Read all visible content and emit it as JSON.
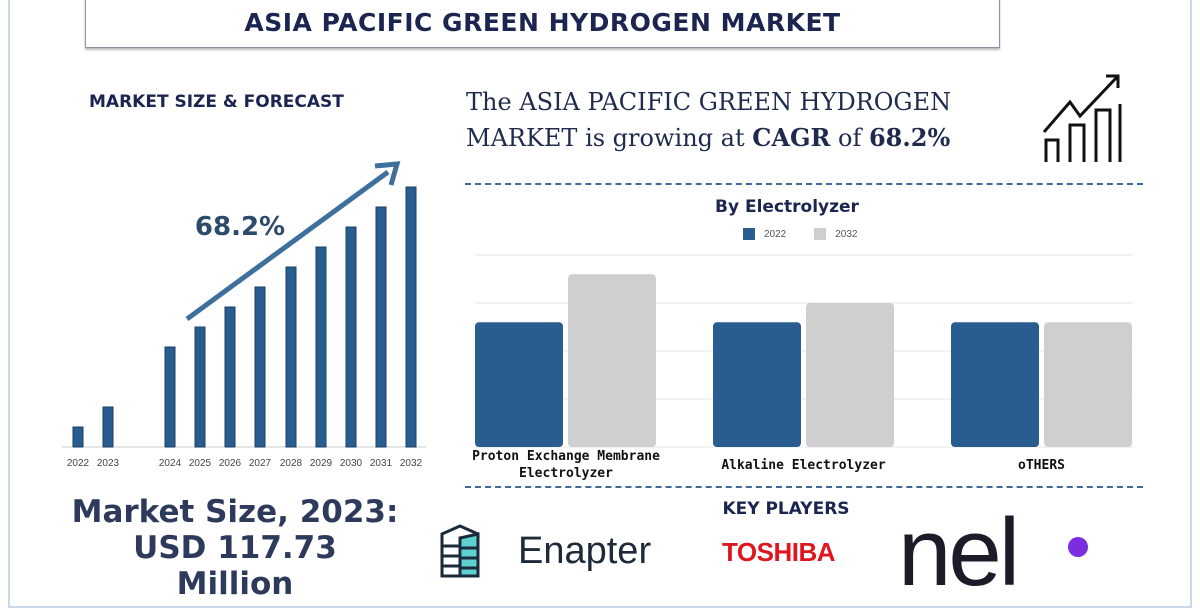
{
  "title": "ASIA PACIFIC GREEN HYDROGEN MARKET",
  "forecast_heading": "MARKET SIZE & FORECAST",
  "headline": {
    "part1": "The ASIA PACIFIC GREEN HYDROGEN MARKET is growing at ",
    "cagr_label": "CAGR",
    "of": " of ",
    "cagr_value": "68.2%"
  },
  "icon": "growth-chart-icon",
  "market_size": {
    "line1": "Market Size, 2023:",
    "line2": "USD 117.73",
    "line3": "Million"
  },
  "key_players": {
    "heading": "KEY PLAYERS",
    "players": [
      "Enapter",
      "TOSHIBA",
      "nel"
    ]
  },
  "colors": {
    "primary": "#2a5d8f",
    "secondary": "#cfcfcf",
    "toshiba": "#e0161e",
    "nel_dot": "#7b2ee0",
    "text": "#1f2a4d"
  },
  "chart_data": [
    {
      "type": "bar",
      "title": "",
      "annotation": "68.2%",
      "categories": [
        "2022",
        "2023",
        "2024",
        "2025",
        "2026",
        "2027",
        "2028",
        "2029",
        "2030",
        "2031",
        "2032"
      ],
      "values": [
        1,
        2,
        5,
        6,
        7,
        8,
        9,
        10,
        11,
        12,
        13
      ],
      "grid": false,
      "trend_arrow": true
    },
    {
      "type": "bar",
      "title": "By Electrolyzer",
      "categories": [
        "Proton Exchange Membrane Electrolyzer",
        "Alkaline Electrolyzer",
        "oTHERS"
      ],
      "series": [
        {
          "name": "2022",
          "values": [
            2.6,
            2.6,
            2.6
          ]
        },
        {
          "name": "2032",
          "values": [
            3.6,
            3.0,
            2.6
          ]
        }
      ],
      "ylim": [
        0,
        4
      ],
      "grid": true,
      "legend": "top"
    }
  ]
}
